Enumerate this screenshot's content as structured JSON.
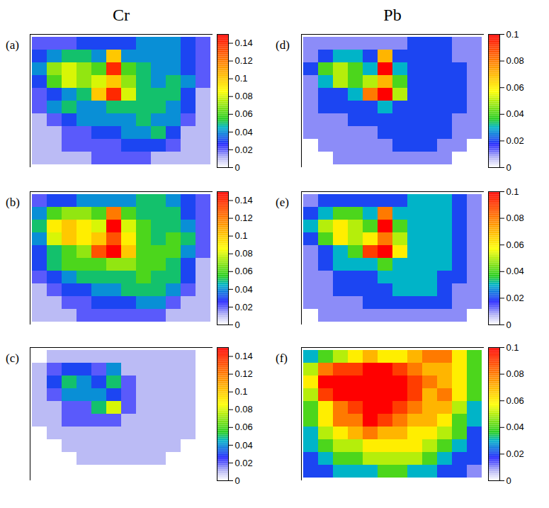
{
  "chart_data": [
    {
      "type": "heatmap",
      "title": "Cr",
      "annotation": "(a)",
      "tick_labels": false,
      "color_range": [
        0,
        0.15
      ],
      "color_ticks": [
        0,
        0.02,
        0.04,
        0.06,
        0.08,
        0.1,
        0.12,
        0.14
      ],
      "cells": [
        [
          0.02,
          0.02,
          0.02,
          0.03,
          0.03,
          0.03,
          0.03,
          0.04,
          0.04,
          0.04,
          0.03,
          0.02
        ],
        [
          0.03,
          0.04,
          0.05,
          0.05,
          0.04,
          0.1,
          0.04,
          0.04,
          0.04,
          0.04,
          0.03,
          0.02
        ],
        [
          0.04,
          0.07,
          0.08,
          0.07,
          0.06,
          0.14,
          0.06,
          0.05,
          0.04,
          0.04,
          0.03,
          0.02
        ],
        [
          0.03,
          0.06,
          0.08,
          0.07,
          0.08,
          0.1,
          0.07,
          0.05,
          0.04,
          0.05,
          0.04,
          0.02
        ],
        [
          0.02,
          0.03,
          0.04,
          0.05,
          0.1,
          0.14,
          0.08,
          0.05,
          0.05,
          0.05,
          0.03,
          0.01
        ],
        [
          0.02,
          0.04,
          0.05,
          0.04,
          0.04,
          0.05,
          0.05,
          0.05,
          0.05,
          0.04,
          0.03,
          0.01
        ],
        [
          0.01,
          0.02,
          0.03,
          0.04,
          0.04,
          0.04,
          0.04,
          0.05,
          0.04,
          0.04,
          0.02,
          0.01
        ],
        [
          0.01,
          0.01,
          0.02,
          0.02,
          0.03,
          0.03,
          0.04,
          0.04,
          0.05,
          0.03,
          0.01,
          0.01
        ],
        [
          0.01,
          0.01,
          0.02,
          0.02,
          0.02,
          0.02,
          0.03,
          0.03,
          0.03,
          0.02,
          0.01,
          0.01
        ],
        [
          0.01,
          0.01,
          0.01,
          0.01,
          0.02,
          0.02,
          0.02,
          0.02,
          0.01,
          0.01,
          0.01,
          0.01
        ]
      ]
    },
    {
      "type": "heatmap",
      "annotation": "(b)",
      "tick_labels": false,
      "color_range": [
        0,
        0.15
      ],
      "color_ticks": [
        0,
        0.02,
        0.04,
        0.06,
        0.08,
        0.1,
        0.12,
        0.14
      ],
      "cells": [
        [
          0.02,
          0.03,
          0.03,
          0.04,
          0.04,
          0.04,
          0.04,
          0.05,
          0.05,
          0.04,
          0.03,
          0.02
        ],
        [
          0.04,
          0.06,
          0.07,
          0.07,
          0.06,
          0.12,
          0.06,
          0.05,
          0.05,
          0.05,
          0.03,
          0.02
        ],
        [
          0.05,
          0.09,
          0.1,
          0.09,
          0.08,
          0.15,
          0.08,
          0.06,
          0.05,
          0.05,
          0.04,
          0.02
        ],
        [
          0.04,
          0.08,
          0.1,
          0.09,
          0.1,
          0.13,
          0.09,
          0.06,
          0.05,
          0.06,
          0.05,
          0.02
        ],
        [
          0.03,
          0.05,
          0.06,
          0.07,
          0.13,
          0.15,
          0.1,
          0.06,
          0.06,
          0.06,
          0.04,
          0.02
        ],
        [
          0.03,
          0.05,
          0.06,
          0.06,
          0.06,
          0.07,
          0.07,
          0.06,
          0.06,
          0.05,
          0.03,
          0.01
        ],
        [
          0.02,
          0.03,
          0.04,
          0.05,
          0.05,
          0.05,
          0.05,
          0.06,
          0.05,
          0.05,
          0.03,
          0.01
        ],
        [
          0.01,
          0.02,
          0.03,
          0.03,
          0.04,
          0.04,
          0.05,
          0.05,
          0.05,
          0.04,
          0.02,
          0.01
        ],
        [
          0.01,
          0.01,
          0.02,
          0.02,
          0.03,
          0.03,
          0.03,
          0.04,
          0.04,
          0.02,
          0.01,
          0.01
        ],
        [
          0.01,
          0.01,
          0.01,
          0.02,
          0.02,
          0.02,
          0.02,
          0.02,
          0.02,
          0.01,
          0.01,
          0.01
        ]
      ]
    },
    {
      "type": "heatmap",
      "annotation": "(c)",
      "tick_labels": false,
      "color_range": [
        0,
        0.15
      ],
      "color_ticks": [
        0,
        0.02,
        0.04,
        0.06,
        0.08,
        0.1,
        0.12,
        0.14
      ],
      "cells": [
        [
          0,
          0.01,
          0.01,
          0.01,
          0.01,
          0.01,
          0.01,
          0.01,
          0.01,
          0.01,
          0.01,
          0
        ],
        [
          0.01,
          0.02,
          0.03,
          0.03,
          0.02,
          0.04,
          0.01,
          0.01,
          0.01,
          0.01,
          0.01,
          0
        ],
        [
          0.01,
          0.03,
          0.05,
          0.04,
          0.03,
          0.05,
          0.02,
          0.01,
          0.01,
          0.01,
          0.01,
          0
        ],
        [
          0.01,
          0.02,
          0.04,
          0.04,
          0.04,
          0.03,
          0.02,
          0.01,
          0.01,
          0.01,
          0.01,
          0
        ],
        [
          0.01,
          0.01,
          0.02,
          0.02,
          0.05,
          0.08,
          0.02,
          0.01,
          0.01,
          0.01,
          0.01,
          0
        ],
        [
          0.01,
          0.01,
          0.02,
          0.02,
          0.02,
          0.02,
          0.01,
          0.01,
          0.01,
          0.01,
          0.01,
          0
        ],
        [
          0,
          0.01,
          0.01,
          0.01,
          0.01,
          0.01,
          0.01,
          0.01,
          0.01,
          0.01,
          0.01,
          0
        ],
        [
          0,
          0,
          0.01,
          0.01,
          0.01,
          0.01,
          0.01,
          0.01,
          0.01,
          0.01,
          0,
          0
        ],
        [
          0,
          0,
          0,
          0.01,
          0.01,
          0.01,
          0.01,
          0.01,
          0.01,
          0,
          0,
          0
        ],
        [
          0,
          0,
          0,
          0,
          0,
          0,
          0,
          0,
          0,
          0,
          0,
          0
        ]
      ]
    },
    {
      "type": "heatmap",
      "title": "Pb",
      "annotation": "(d)",
      "tick_labels": false,
      "color_range": [
        0,
        0.1
      ],
      "color_ticks": [
        0,
        0.02,
        0.04,
        0.06,
        0.08,
        0.1
      ],
      "cells": [
        [
          0.01,
          0.01,
          0.01,
          0.01,
          0.01,
          0.01,
          0.01,
          0.02,
          0.02,
          0.02,
          0.01,
          0.01
        ],
        [
          0.01,
          0.02,
          0.03,
          0.03,
          0.02,
          0.07,
          0.02,
          0.02,
          0.02,
          0.02,
          0.01,
          0.01
        ],
        [
          0.02,
          0.04,
          0.05,
          0.04,
          0.03,
          0.1,
          0.03,
          0.02,
          0.02,
          0.02,
          0.02,
          0.01
        ],
        [
          0.01,
          0.03,
          0.05,
          0.04,
          0.05,
          0.07,
          0.04,
          0.02,
          0.02,
          0.02,
          0.02,
          0.01
        ],
        [
          0.01,
          0.02,
          0.02,
          0.03,
          0.08,
          0.1,
          0.05,
          0.02,
          0.02,
          0.02,
          0.02,
          0.01
        ],
        [
          0.01,
          0.02,
          0.02,
          0.02,
          0.02,
          0.03,
          0.02,
          0.02,
          0.02,
          0.02,
          0.02,
          0.01
        ],
        [
          0.01,
          0.01,
          0.01,
          0.02,
          0.02,
          0.02,
          0.02,
          0.02,
          0.02,
          0.02,
          0.01,
          0.01
        ],
        [
          0.01,
          0.01,
          0.01,
          0.01,
          0.01,
          0.02,
          0.02,
          0.02,
          0.02,
          0.02,
          0.01,
          0.01
        ],
        [
          0,
          0.01,
          0.01,
          0.01,
          0.01,
          0.01,
          0.02,
          0.02,
          0.02,
          0.01,
          0.01,
          0
        ],
        [
          0,
          0,
          0.01,
          0.01,
          0.01,
          0.01,
          0.01,
          0.01,
          0.01,
          0.01,
          0,
          0
        ]
      ]
    },
    {
      "type": "heatmap",
      "annotation": "(e)",
      "tick_labels": false,
      "color_range": [
        0,
        0.1
      ],
      "color_ticks": [
        0,
        0.02,
        0.04,
        0.06,
        0.08,
        0.1
      ],
      "cells": [
        [
          0.01,
          0.02,
          0.02,
          0.02,
          0.02,
          0.02,
          0.02,
          0.03,
          0.03,
          0.03,
          0.02,
          0.01
        ],
        [
          0.02,
          0.03,
          0.04,
          0.04,
          0.03,
          0.08,
          0.03,
          0.03,
          0.03,
          0.03,
          0.02,
          0.01
        ],
        [
          0.03,
          0.05,
          0.06,
          0.05,
          0.04,
          0.1,
          0.04,
          0.03,
          0.03,
          0.03,
          0.02,
          0.01
        ],
        [
          0.02,
          0.04,
          0.06,
          0.05,
          0.06,
          0.08,
          0.05,
          0.03,
          0.03,
          0.03,
          0.02,
          0.01
        ],
        [
          0.01,
          0.02,
          0.03,
          0.04,
          0.09,
          0.1,
          0.06,
          0.03,
          0.03,
          0.03,
          0.02,
          0.01
        ],
        [
          0.01,
          0.02,
          0.03,
          0.03,
          0.03,
          0.04,
          0.03,
          0.03,
          0.03,
          0.03,
          0.02,
          0.01
        ],
        [
          0.01,
          0.01,
          0.02,
          0.02,
          0.02,
          0.03,
          0.03,
          0.03,
          0.03,
          0.02,
          0.02,
          0.01
        ],
        [
          0.01,
          0.01,
          0.02,
          0.02,
          0.02,
          0.02,
          0.03,
          0.03,
          0.03,
          0.02,
          0.01,
          0.01
        ],
        [
          0.01,
          0.01,
          0.01,
          0.01,
          0.02,
          0.02,
          0.02,
          0.02,
          0.02,
          0.02,
          0.01,
          0.01
        ],
        [
          0,
          0.01,
          0.01,
          0.01,
          0.01,
          0.01,
          0.01,
          0.01,
          0.01,
          0.01,
          0.01,
          0
        ]
      ]
    },
    {
      "type": "heatmap",
      "annotation": "(f)",
      "tick_labels": false,
      "color_range": [
        0,
        0.1
      ],
      "color_ticks": [
        0,
        0.02,
        0.04,
        0.06,
        0.08,
        0.1
      ],
      "cells": [
        [
          0.03,
          0.04,
          0.05,
          0.06,
          0.07,
          0.06,
          0.06,
          0.07,
          0.08,
          0.08,
          0.06,
          0.04
        ],
        [
          0.05,
          0.08,
          0.09,
          0.09,
          0.1,
          0.1,
          0.09,
          0.08,
          0.07,
          0.07,
          0.06,
          0.04
        ],
        [
          0.06,
          0.1,
          0.1,
          0.1,
          0.1,
          0.1,
          0.1,
          0.09,
          0.08,
          0.07,
          0.06,
          0.04
        ],
        [
          0.05,
          0.09,
          0.1,
          0.1,
          0.1,
          0.1,
          0.1,
          0.09,
          0.07,
          0.08,
          0.06,
          0.04
        ],
        [
          0.04,
          0.06,
          0.08,
          0.09,
          0.1,
          0.1,
          0.09,
          0.08,
          0.07,
          0.07,
          0.05,
          0.03
        ],
        [
          0.04,
          0.06,
          0.08,
          0.08,
          0.1,
          0.09,
          0.08,
          0.07,
          0.07,
          0.06,
          0.04,
          0.03
        ],
        [
          0.03,
          0.05,
          0.06,
          0.07,
          0.08,
          0.07,
          0.07,
          0.06,
          0.06,
          0.05,
          0.04,
          0.02
        ],
        [
          0.03,
          0.04,
          0.05,
          0.05,
          0.06,
          0.06,
          0.06,
          0.06,
          0.05,
          0.04,
          0.03,
          0.02
        ],
        [
          0.02,
          0.03,
          0.04,
          0.04,
          0.05,
          0.05,
          0.05,
          0.05,
          0.04,
          0.03,
          0.02,
          0.02
        ],
        [
          0.02,
          0.02,
          0.03,
          0.03,
          0.03,
          0.04,
          0.04,
          0.03,
          0.03,
          0.02,
          0.02,
          0.01
        ]
      ]
    }
  ]
}
